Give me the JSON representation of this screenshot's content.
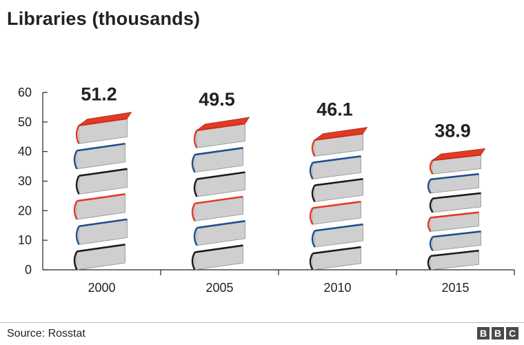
{
  "chart_data": {
    "type": "bar",
    "title": "Libraries (thousands)",
    "categories": [
      "2000",
      "2005",
      "2010",
      "2015"
    ],
    "values": [
      51.2,
      49.5,
      46.1,
      38.9
    ],
    "value_labels": [
      "51.2",
      "49.5",
      "46.1",
      "38.9"
    ],
    "ylim": [
      0,
      60
    ],
    "yticks": [
      "0",
      "10",
      "20",
      "30",
      "40",
      "50",
      "60"
    ],
    "xlabel": "",
    "ylabel": "",
    "grid": false,
    "bar_style": "stacked-books"
  },
  "footer": {
    "source": "Source: Rosstat",
    "logo_letters": [
      "B",
      "B",
      "C"
    ]
  },
  "colors": {
    "page": "#cfcfcf",
    "cover_red": "#e23a24",
    "cover_blue": "#1f4f8c",
    "cover_dark": "#1a1a1a",
    "axis": "#222222"
  }
}
